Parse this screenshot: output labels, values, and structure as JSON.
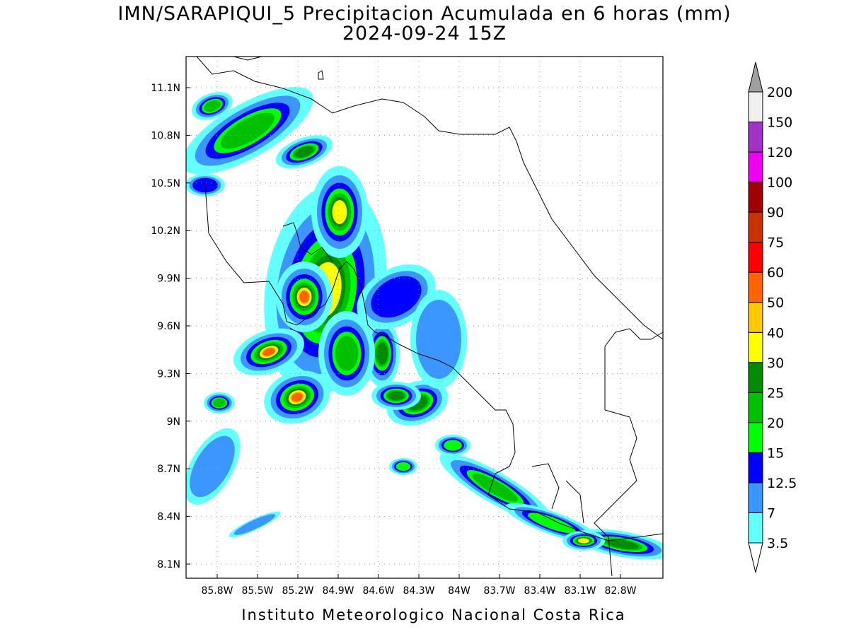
{
  "header": {
    "title": "IMN/SARAPIQUI_5 Precipitacion Acumulada en 6 horas (mm)",
    "subtitle": "2024-09-24 15Z"
  },
  "map": {
    "lat_labels": [
      "11.1N",
      "10.8N",
      "10.5N",
      "10.2N",
      "9.9N",
      "9.6N",
      "9.3N",
      "9N",
      "8.7N",
      "8.4N",
      "8.1N"
    ],
    "lon_labels": [
      "85.8W",
      "85.5W",
      "85.2W",
      "84.9W",
      "84.6W",
      "84.3W",
      "84W",
      "83.7W",
      "83.4W",
      "83.1W",
      "82.8W"
    ]
  },
  "legend": {
    "levels": [
      3.5,
      7,
      12.5,
      15,
      20,
      25,
      30,
      40,
      50,
      60,
      75,
      90,
      100,
      120,
      150,
      200
    ],
    "colors": [
      "#ffffff",
      "#64ffff",
      "#3c96ff",
      "#0000ff",
      "#00ff00",
      "#00c000",
      "#008c00",
      "#ffff00",
      "#ffc800",
      "#ff6400",
      "#ff0000",
      "#c83200",
      "#a00000",
      "#f000f0",
      "#a032c8",
      "#f0f0f0",
      "#a0a0a0"
    ]
  },
  "footer": "Instituto Meteorologico Nacional Costa Rica"
}
